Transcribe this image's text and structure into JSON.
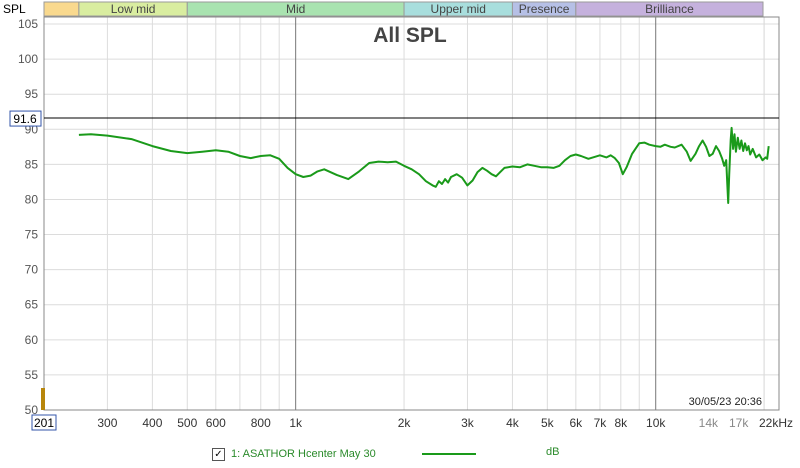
{
  "chart_data": {
    "type": "line",
    "title": "All SPL",
    "ylabel": "SPL",
    "ylim": [
      50,
      106
    ],
    "xlim": [
      200,
      22000
    ],
    "x_scale": "log",
    "y_ticks": [
      50,
      55,
      60,
      65,
      70,
      75,
      80,
      85,
      90,
      95,
      100,
      105
    ],
    "x_ticks": [
      {
        "v": 300,
        "label": "300"
      },
      {
        "v": 400,
        "label": "400"
      },
      {
        "v": 500,
        "label": "500"
      },
      {
        "v": 600,
        "label": "600"
      },
      {
        "v": 800,
        "label": "800"
      },
      {
        "v": 1000,
        "label": "1k"
      },
      {
        "v": 2000,
        "label": "2k"
      },
      {
        "v": 3000,
        "label": "3k"
      },
      {
        "v": 4000,
        "label": "4k"
      },
      {
        "v": 5000,
        "label": "5k"
      },
      {
        "v": 6000,
        "label": "6k"
      },
      {
        "v": 7000,
        "label": "7k"
      },
      {
        "v": 8000,
        "label": "8k"
      },
      {
        "v": 10000,
        "label": "10k"
      },
      {
        "v": 14000,
        "label": "14k"
      },
      {
        "v": 17000,
        "label": "17k"
      },
      {
        "v": 22000,
        "label": "22kHz"
      }
    ],
    "x_start_label": "201",
    "cursor_value": 91.6,
    "cursor_label": "91.6",
    "bands": [
      {
        "name": "",
        "from": 200,
        "to": 250,
        "color": "#f9d98e"
      },
      {
        "name": "Low mid",
        "from": 250,
        "to": 500,
        "color": "#d9eda0"
      },
      {
        "name": "Mid",
        "from": 500,
        "to": 2000,
        "color": "#a9e3b0"
      },
      {
        "name": "Upper mid",
        "from": 2000,
        "to": 4000,
        "color": "#a8dedd"
      },
      {
        "name": "Presence",
        "from": 4000,
        "to": 6000,
        "color": "#b6c0e6"
      },
      {
        "name": "Brilliance",
        "from": 6000,
        "to": 20000,
        "color": "#c5b1dd"
      }
    ],
    "series": [
      {
        "name": "1: ASATHOR Hcenter May 30",
        "unit": "dB",
        "color": "#1a9a1a",
        "points": [
          [
            250,
            89.2
          ],
          [
            270,
            89.3
          ],
          [
            300,
            89.1
          ],
          [
            350,
            88.6
          ],
          [
            400,
            87.6
          ],
          [
            450,
            86.9
          ],
          [
            500,
            86.6
          ],
          [
            550,
            86.8
          ],
          [
            600,
            87.0
          ],
          [
            650,
            86.8
          ],
          [
            700,
            86.2
          ],
          [
            750,
            85.9
          ],
          [
            800,
            86.2
          ],
          [
            850,
            86.3
          ],
          [
            900,
            85.8
          ],
          [
            950,
            84.5
          ],
          [
            1000,
            83.6
          ],
          [
            1050,
            83.2
          ],
          [
            1100,
            83.4
          ],
          [
            1150,
            84.0
          ],
          [
            1200,
            84.3
          ],
          [
            1300,
            83.5
          ],
          [
            1400,
            82.9
          ],
          [
            1500,
            84.0
          ],
          [
            1600,
            85.2
          ],
          [
            1700,
            85.4
          ],
          [
            1800,
            85.3
          ],
          [
            1900,
            85.4
          ],
          [
            2000,
            84.8
          ],
          [
            2100,
            84.3
          ],
          [
            2200,
            83.6
          ],
          [
            2300,
            82.6
          ],
          [
            2400,
            82.0
          ],
          [
            2450,
            81.8
          ],
          [
            2500,
            82.6
          ],
          [
            2550,
            82.2
          ],
          [
            2600,
            82.9
          ],
          [
            2650,
            82.4
          ],
          [
            2700,
            83.2
          ],
          [
            2800,
            83.6
          ],
          [
            2900,
            83.1
          ],
          [
            3000,
            82.0
          ],
          [
            3100,
            82.7
          ],
          [
            3200,
            83.9
          ],
          [
            3300,
            84.5
          ],
          [
            3400,
            84.1
          ],
          [
            3500,
            83.6
          ],
          [
            3600,
            83.3
          ],
          [
            3700,
            83.9
          ],
          [
            3800,
            84.5
          ],
          [
            4000,
            84.7
          ],
          [
            4200,
            84.6
          ],
          [
            4400,
            85.0
          ],
          [
            4600,
            84.8
          ],
          [
            4800,
            84.6
          ],
          [
            5000,
            84.6
          ],
          [
            5200,
            84.5
          ],
          [
            5400,
            84.8
          ],
          [
            5600,
            85.6
          ],
          [
            5800,
            86.2
          ],
          [
            6000,
            86.4
          ],
          [
            6200,
            86.2
          ],
          [
            6500,
            85.8
          ],
          [
            6800,
            86.1
          ],
          [
            7000,
            86.3
          ],
          [
            7300,
            86.0
          ],
          [
            7500,
            86.3
          ],
          [
            7700,
            85.9
          ],
          [
            7900,
            85.2
          ],
          [
            8100,
            83.6
          ],
          [
            8300,
            84.6
          ],
          [
            8600,
            86.5
          ],
          [
            9000,
            88.0
          ],
          [
            9300,
            88.1
          ],
          [
            9600,
            87.8
          ],
          [
            10000,
            87.6
          ],
          [
            10300,
            87.5
          ],
          [
            10600,
            87.8
          ],
          [
            11000,
            87.5
          ],
          [
            11300,
            87.4
          ],
          [
            11800,
            87.8
          ],
          [
            12200,
            86.8
          ],
          [
            12500,
            85.5
          ],
          [
            12900,
            86.5
          ],
          [
            13200,
            87.6
          ],
          [
            13500,
            88.4
          ],
          [
            13800,
            87.5
          ],
          [
            14100,
            86.2
          ],
          [
            14400,
            86.5
          ],
          [
            14700,
            87.6
          ],
          [
            15000,
            86.9
          ],
          [
            15300,
            85.8
          ],
          [
            15500,
            84.8
          ],
          [
            15700,
            85.6
          ],
          [
            15800,
            82.5
          ],
          [
            15900,
            79.5
          ],
          [
            16000,
            83.5
          ],
          [
            16150,
            88.5
          ],
          [
            16250,
            90.2
          ],
          [
            16400,
            87.2
          ],
          [
            16550,
            89.3
          ],
          [
            16700,
            86.8
          ],
          [
            16900,
            88.8
          ],
          [
            17100,
            87.2
          ],
          [
            17300,
            88.4
          ],
          [
            17500,
            86.9
          ],
          [
            17700,
            88.0
          ],
          [
            17900,
            87.0
          ],
          [
            18100,
            87.6
          ],
          [
            18300,
            86.4
          ],
          [
            18600,
            87.2
          ],
          [
            19000,
            86.0
          ],
          [
            19400,
            86.4
          ],
          [
            19800,
            85.6
          ],
          [
            20200,
            86.0
          ],
          [
            20400,
            85.8
          ],
          [
            20600,
            87.6
          ]
        ]
      }
    ],
    "timestamp": "30/05/23 20:36"
  },
  "legend": {
    "checkbox": "✓",
    "label": "1: ASATHOR Hcenter May 30",
    "unit": "dB"
  }
}
